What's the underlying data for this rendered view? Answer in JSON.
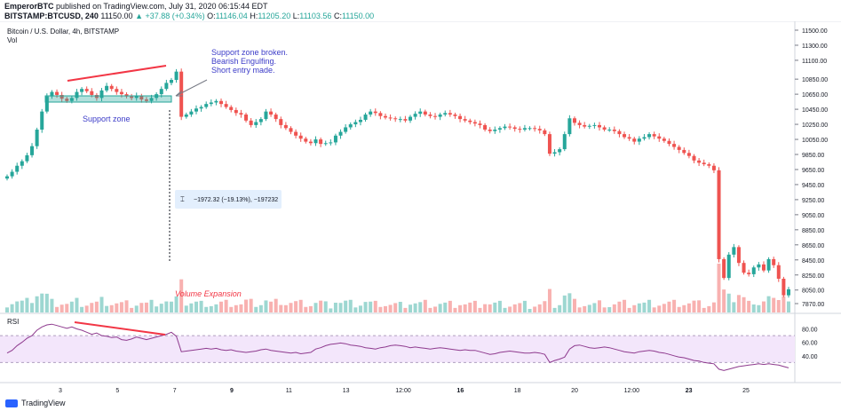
{
  "header": {
    "author": "EmperorBTC",
    "published_text": "published on TradingView.com, July 31, 2020 06:15:44 EDT",
    "symbol": "BITSTAMP:BTCUSD, 240",
    "last": "11150.00",
    "change": "+37.88 (+0.34%)",
    "o_label": "O:",
    "o": "11146.04",
    "h_label": "H:",
    "h": "11205.20",
    "l_label": "L:",
    "l": "11103.56",
    "c_label": "C:",
    "c": "11150.00"
  },
  "pane_title": "Bitcoin / U.S. Dollar, 4h, BITSTAMP",
  "vol_label": "Vol",
  "rsi_label": "RSI",
  "annotations": {
    "broken": [
      "Support zone broken.",
      "Bearish Engulfing.",
      "Short entry made."
    ],
    "support_zone": "Support zone",
    "volume_expansion": "Volume Expansion",
    "measure": "−1972.32 (−19.13%), −197232"
  },
  "footer": "TradingView",
  "colors": {
    "up": "#26a69a",
    "down": "#ef5350",
    "annotation_red": "#f23645",
    "annotation_blue": "#3c3cc8",
    "support_zone": "#26a69a",
    "rsi_line": "#8e3a8e",
    "rsi_band": "#f3e6fb"
  },
  "chart_data": [
    {
      "type": "candlestick",
      "title": "Bitcoin / U.S. Dollar, 4h, BITSTAMP",
      "price_axis_ticks": [
        "11500.00",
        "11300.00",
        "11100.00",
        "10850.00",
        "10650.00",
        "10450.00",
        "10250.00",
        "10050.00",
        "9850.00",
        "9650.00",
        "9450.00",
        "9250.00",
        "9050.00",
        "8850.00",
        "8650.00",
        "8450.00",
        "8250.00",
        "8050.00",
        "7870.00"
      ],
      "time_axis_ticks": [
        "3",
        "5",
        "7",
        "9",
        "11",
        "13",
        "12:00",
        "16",
        "18",
        "20",
        "12:00",
        "23",
        "25"
      ],
      "ylim": [
        7870,
        11500
      ],
      "close_series": [
        9560,
        9620,
        9700,
        9760,
        9840,
        9960,
        10180,
        10420,
        10620,
        10680,
        10640,
        10590,
        10560,
        10600,
        10680,
        10720,
        10690,
        10640,
        10600,
        10700,
        10760,
        10720,
        10680,
        10650,
        10620,
        10600,
        10630,
        10580,
        10560,
        10600,
        10650,
        10720,
        10800,
        10840,
        10950,
        10350,
        10380,
        10420,
        10460,
        10480,
        10520,
        10540,
        10560,
        10520,
        10480,
        10440,
        10400,
        10380,
        10300,
        10240,
        10280,
        10320,
        10420,
        10380,
        10320,
        10240,
        10200,
        10150,
        10100,
        10060,
        10020,
        10000,
        10050,
        9990,
        10000,
        10010,
        10100,
        10150,
        10210,
        10250,
        10280,
        10310,
        10380,
        10420,
        10400,
        10360,
        10340,
        10330,
        10320,
        10320,
        10300,
        10350,
        10390,
        10420,
        10380,
        10360,
        10350,
        10380,
        10400,
        10380,
        10360,
        10320,
        10300,
        10280,
        10260,
        10240,
        10180,
        10160,
        10180,
        10200,
        10220,
        10210,
        10190,
        10180,
        10200,
        10200,
        10190,
        10170,
        10120,
        9860,
        9880,
        9920,
        10120,
        10330,
        10270,
        10240,
        10220,
        10230,
        10240,
        10210,
        10180,
        10180,
        10160,
        10120,
        10080,
        10060,
        10020,
        10060,
        10080,
        10120,
        10090,
        10060,
        10030,
        9990,
        9950,
        9910,
        9870,
        9830,
        9770,
        9740,
        9720,
        9700,
        9640,
        8460,
        8210,
        8520,
        8620,
        8410,
        8280,
        8260,
        8350,
        8390,
        8310,
        8460,
        8380,
        8200,
        7980,
        8060
      ],
      "rsi_axis_ticks": [
        "80.00",
        "60.00",
        "40.00"
      ],
      "rsi_levels": [
        70,
        30
      ],
      "rsi_series": [
        44,
        48,
        55,
        60,
        66,
        70,
        78,
        83,
        86,
        87,
        85,
        83,
        81,
        83,
        80,
        78,
        75,
        72,
        74,
        70,
        69,
        67,
        68,
        64,
        63,
        65,
        68,
        66,
        64,
        66,
        68,
        70,
        72,
        75,
        69,
        46,
        47,
        48,
        49,
        50,
        51,
        50,
        51,
        49,
        48,
        49,
        47,
        46,
        45,
        46,
        47,
        49,
        50,
        48,
        47,
        46,
        45,
        44,
        45,
        43,
        44,
        45,
        50,
        52,
        55,
        57,
        58,
        59,
        58,
        56,
        55,
        54,
        52,
        51,
        50,
        52,
        53,
        55,
        56,
        55,
        54,
        52,
        53,
        52,
        51,
        50,
        51,
        52,
        51,
        50,
        49,
        48,
        49,
        48,
        48,
        46,
        44,
        42,
        43,
        45,
        46,
        47,
        46,
        45,
        44,
        44,
        45,
        44,
        42,
        30,
        33,
        35,
        38,
        50,
        55,
        56,
        54,
        52,
        51,
        52,
        53,
        52,
        50,
        48,
        46,
        45,
        44,
        46,
        47,
        48,
        47,
        45,
        44,
        42,
        40,
        38,
        37,
        35,
        33,
        32,
        30,
        29,
        28,
        20,
        18,
        20,
        22,
        24,
        25,
        26,
        27,
        28,
        27,
        28,
        27,
        26,
        24,
        22
      ]
    }
  ]
}
